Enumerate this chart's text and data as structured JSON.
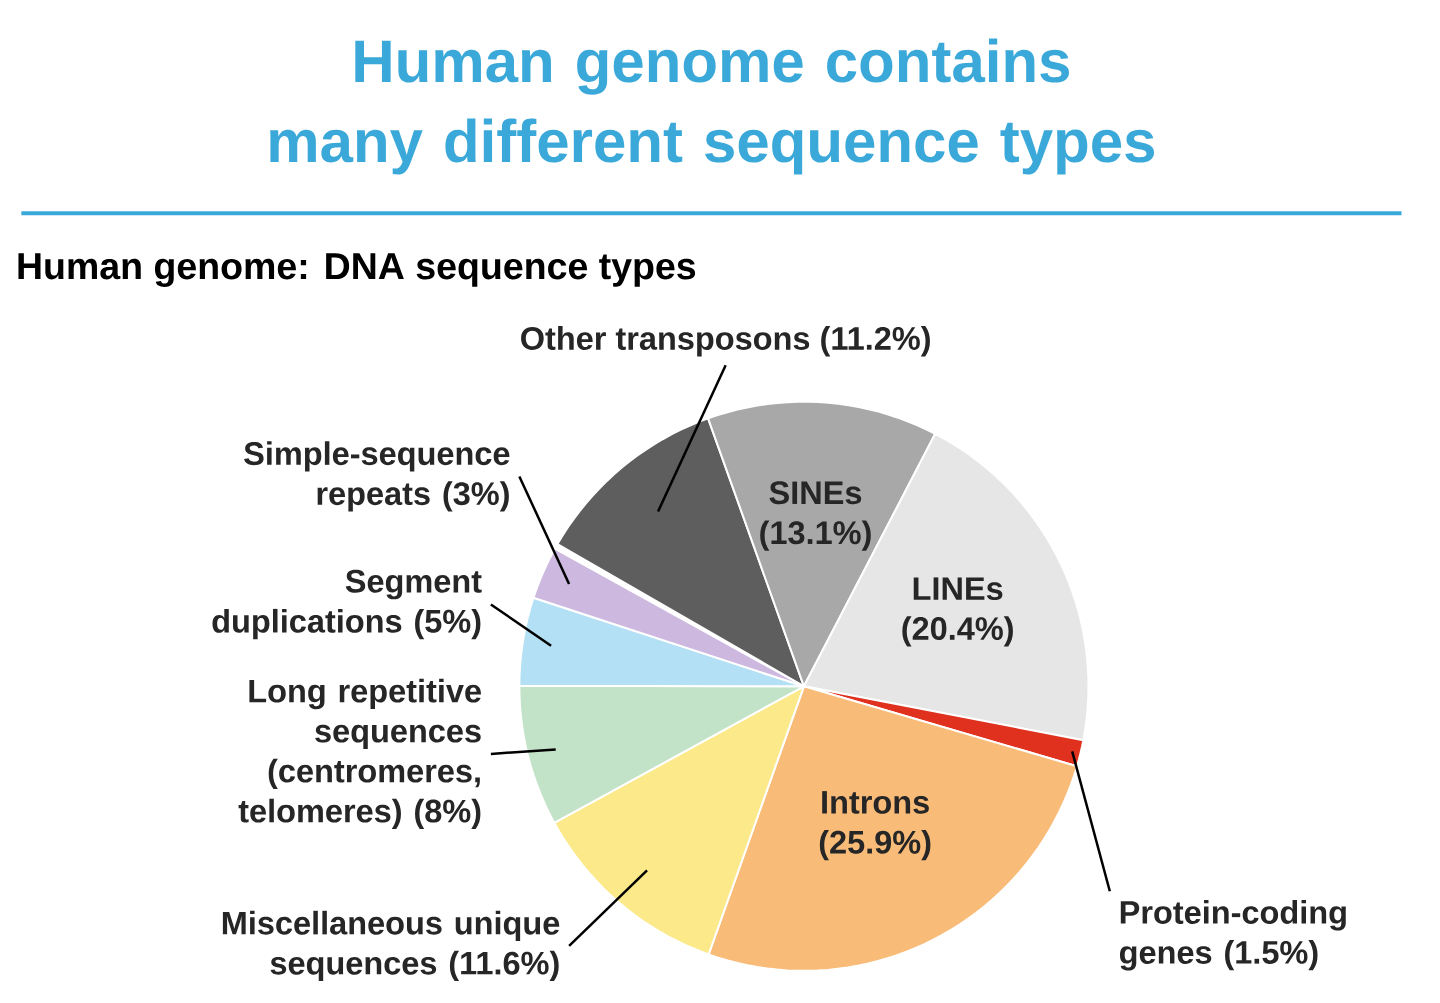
{
  "chart_data": {
    "type": "pie",
    "title": "Human genome contains many different sequence types",
    "subtitle": "Human genome: DNA sequence types",
    "categories": [
      "Other transposons",
      "SINEs",
      "LINEs",
      "Protein-coding genes",
      "Introns",
      "Miscellaneous unique sequences",
      "Long repetitive sequences (centromeres, telomeres)",
      "Segment duplications",
      "Simple-sequence repeats"
    ],
    "values": [
      11.2,
      13.1,
      20.4,
      1.5,
      25.9,
      11.6,
      8,
      5,
      3
    ],
    "value_labels": [
      "(11.2%)",
      "(13.1%)",
      "(20.4%)",
      "(1.5%)",
      "(25.9%)",
      "(11.6%)",
      "(8%)",
      "(5%)",
      "(3%)"
    ],
    "colors": [
      "#5e5e5e",
      "#a8a8a8",
      "#e6e6e6",
      "#e0301e",
      "#f9bb78",
      "#fbe98a",
      "#c3e3c8",
      "#b3e0f5",
      "#cdb8e0"
    ]
  }
}
